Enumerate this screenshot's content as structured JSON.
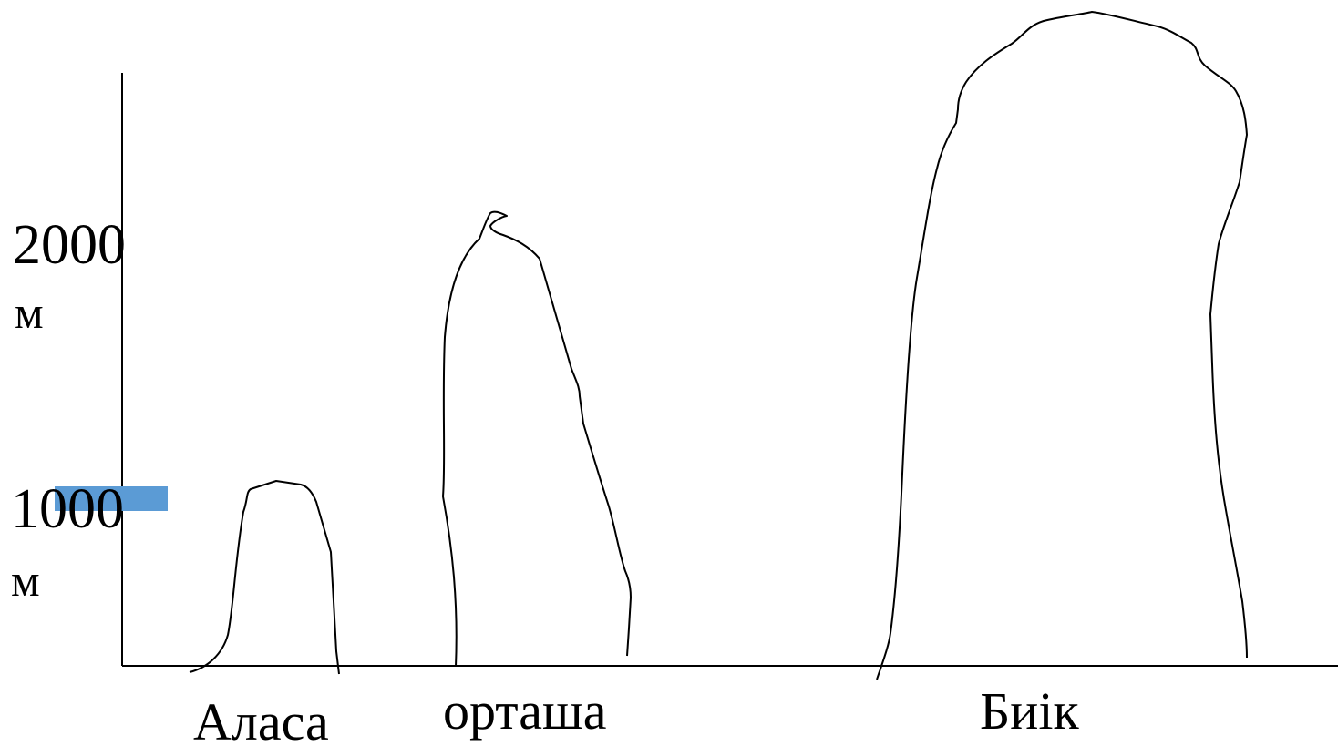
{
  "diagram": {
    "y_axis": {
      "ticks": [
        {
          "value": "2000",
          "unit": "м"
        },
        {
          "value": "1000",
          "unit": "м"
        }
      ],
      "marker_color": "#5b9bd5"
    },
    "mountains": [
      {
        "name": "Аласа"
      },
      {
        "name": "орташа"
      },
      {
        "name": "Биік"
      }
    ],
    "line_color": "#000000"
  }
}
